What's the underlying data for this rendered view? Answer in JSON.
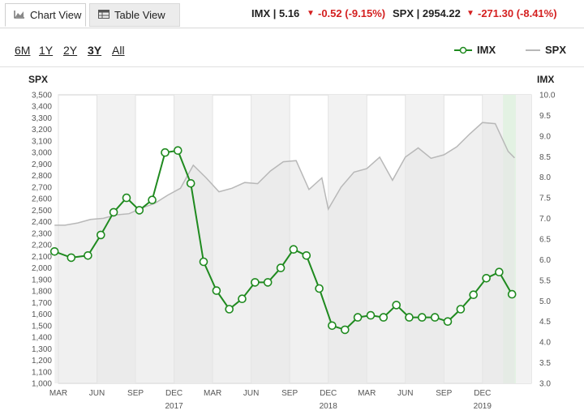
{
  "tabs": [
    {
      "label": "Chart View",
      "icon": "area-chart-icon"
    },
    {
      "label": "Table View",
      "icon": "table-icon"
    }
  ],
  "quotes": {
    "imx_label": "IMX | 5.16",
    "imx_change": "-0.52 (-9.15%)",
    "spx_label": "SPX | 2954.22",
    "spx_change": "-271.30 (-8.41%)"
  },
  "ranges": [
    "6M",
    "1Y",
    "2Y",
    "3Y",
    "All"
  ],
  "selected_range": "3Y",
  "legend": {
    "imx": "IMX",
    "spx": "SPX"
  },
  "colors": {
    "imx": "#1f8a1f",
    "spx": "#b8b8b8",
    "negative": "#d42020",
    "highlight": "#e3f2e3"
  },
  "chart_data": {
    "type": "line",
    "left_axis_title": "SPX",
    "right_axis_title": "IMX",
    "left_ylim": [
      1000,
      3500
    ],
    "left_ticks": [
      "1,000",
      "1,100",
      "1,200",
      "1,300",
      "1,400",
      "1,500",
      "1,600",
      "1,700",
      "1,800",
      "1,900",
      "2,000",
      "2,100",
      "2,200",
      "2,300",
      "2,400",
      "2,500",
      "2,600",
      "2,700",
      "2,800",
      "2,900",
      "3,000",
      "3,100",
      "3,200",
      "3,300",
      "3,400",
      "3,500"
    ],
    "right_ylim": [
      3.0,
      10.0
    ],
    "right_ticks": [
      "3.0",
      "3.5",
      "4.0",
      "4.5",
      "5.0",
      "5.5",
      "6.0",
      "6.5",
      "7.0",
      "7.5",
      "8.0",
      "8.5",
      "9.0",
      "9.5",
      "10.0"
    ],
    "x_ticks": [
      {
        "label": "MAR",
        "month": 0
      },
      {
        "label": "JUN",
        "month": 3
      },
      {
        "label": "SEP",
        "month": 6
      },
      {
        "label": "DEC",
        "month": 9
      },
      {
        "label": "MAR",
        "month": 12
      },
      {
        "label": "JUN",
        "month": 15
      },
      {
        "label": "SEP",
        "month": 18
      },
      {
        "label": "DEC",
        "month": 21
      },
      {
        "label": "MAR",
        "month": 24
      },
      {
        "label": "JUN",
        "month": 27
      },
      {
        "label": "SEP",
        "month": 30
      },
      {
        "label": "DEC",
        "month": 33
      }
    ],
    "x_range": [
      0,
      36.8
    ],
    "year_labels": [
      {
        "label": "2017",
        "month": 9
      },
      {
        "label": "2018",
        "month": 21
      },
      {
        "label": "2019",
        "month": 33
      }
    ],
    "series": [
      {
        "name": "IMX",
        "axis": "right",
        "x": [
          -0.3,
          1.0,
          2.3,
          3.3,
          4.3,
          5.3,
          6.3,
          7.3,
          8.3,
          9.3,
          10.3,
          11.3,
          12.3,
          13.3,
          14.3,
          15.3,
          16.3,
          17.3,
          18.3,
          19.3,
          20.3,
          21.3,
          22.3,
          23.3,
          24.3,
          25.3,
          26.3,
          27.3,
          28.3,
          29.3,
          30.3,
          31.3,
          32.3,
          33.3,
          34.3,
          35.3
        ],
        "values": [
          6.2,
          6.05,
          6.1,
          6.6,
          7.15,
          7.5,
          7.2,
          7.45,
          8.6,
          8.65,
          7.85,
          5.95,
          5.25,
          4.8,
          5.05,
          5.45,
          5.45,
          5.8,
          6.25,
          6.1,
          5.3,
          4.4,
          4.3,
          4.6,
          4.65,
          4.6,
          4.9,
          4.6,
          4.6,
          4.6,
          4.5,
          4.8,
          5.15,
          5.55,
          5.7,
          5.16
        ]
      },
      {
        "name": "SPX",
        "axis": "left",
        "x": [
          -0.3,
          0.5,
          1.5,
          2.5,
          3.5,
          4.5,
          5.5,
          6.5,
          7.5,
          8.5,
          9.5,
          10.5,
          11.5,
          12.5,
          13.5,
          14.5,
          15.5,
          16.5,
          17.5,
          18.5,
          19.5,
          20.5,
          21.0,
          22.0,
          23.0,
          24.0,
          25.0,
          26.0,
          27.0,
          28.0,
          29.0,
          30.0,
          31.0,
          32.0,
          33.0,
          34.0,
          35.0,
          35.5
        ],
        "values": [
          2370,
          2370,
          2390,
          2420,
          2430,
          2460,
          2470,
          2520,
          2560,
          2630,
          2690,
          2890,
          2780,
          2660,
          2690,
          2740,
          2730,
          2840,
          2920,
          2930,
          2680,
          2780,
          2510,
          2700,
          2830,
          2860,
          2960,
          2760,
          2960,
          3040,
          2950,
          2980,
          3050,
          3160,
          3260,
          3250,
          3010,
          2954
        ]
      }
    ],
    "highlight_band": {
      "from_month": 34.6,
      "to_month": 35.6
    }
  }
}
